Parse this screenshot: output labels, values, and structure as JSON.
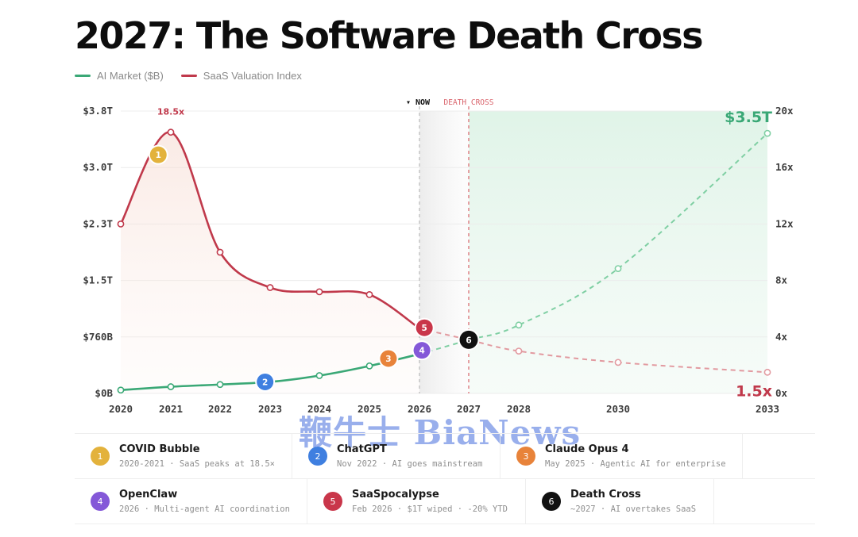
{
  "title": "2027: The Software Death Cross",
  "legend": [
    {
      "label": "AI Market ($B)",
      "color": "#3aa876"
    },
    {
      "label": "SaaS Valuation Index",
      "color": "#c0394b"
    }
  ],
  "colors": {
    "ai": "#3aa876",
    "saas": "#c0394b",
    "death": "#d9636b"
  },
  "chart_data": {
    "type": "line",
    "x_ticks": [
      "2020",
      "2021",
      "2022",
      "2023",
      "2024",
      "2025",
      "2026",
      "2027",
      "2028",
      "2030",
      "2033"
    ],
    "y_left_ticks": [
      "$0B",
      "$760B",
      "$1.5T",
      "$2.3T",
      "$3.0T",
      "$3.8T"
    ],
    "y_right_ticks": [
      "0x",
      "4x",
      "8x",
      "12x",
      "16x",
      "20x"
    ],
    "y_left_unit": "$B",
    "y_left_range": [
      0,
      3800
    ],
    "y_right_range": [
      0,
      20
    ],
    "markers": [
      {
        "x": 2026.0,
        "label": "▾ NOW"
      },
      {
        "x": 2027.0,
        "label": "DEATH CROSS"
      }
    ],
    "series": [
      {
        "name": "AI Market ($B)",
        "axis": "left",
        "actual": [
          [
            2020,
            45
          ],
          [
            2021,
            90
          ],
          [
            2022,
            120
          ],
          [
            2023,
            155
          ],
          [
            2024,
            240
          ],
          [
            2025,
            370
          ],
          [
            2026,
            530
          ]
        ],
        "projected": [
          [
            2026,
            530
          ],
          [
            2027,
            720
          ],
          [
            2028,
            920
          ],
          [
            2030,
            1680
          ],
          [
            2033,
            3500
          ]
        ]
      },
      {
        "name": "SaaS Valuation Index",
        "axis": "right",
        "actual": [
          [
            2020,
            12.0
          ],
          [
            2021,
            18.5
          ],
          [
            2022,
            10.0
          ],
          [
            2023,
            7.5
          ],
          [
            2024,
            7.2
          ],
          [
            2025,
            7.0
          ],
          [
            2026,
            4.6
          ]
        ],
        "projected": [
          [
            2026,
            4.6
          ],
          [
            2027,
            3.8
          ],
          [
            2028,
            3.0
          ],
          [
            2030,
            2.2
          ],
          [
            2033,
            1.5
          ]
        ]
      }
    ],
    "annotations": [
      {
        "text": "18.5x",
        "x": 2021,
        "y": 18.5,
        "axis": "right"
      },
      {
        "text": "$3.5T",
        "x": 2033,
        "y": 3500,
        "axis": "left"
      },
      {
        "text": "1.5x",
        "x": 2033,
        "y": 1.5,
        "axis": "right"
      }
    ],
    "events": [
      {
        "n": "1",
        "x": 2020.75,
        "y": 16.9,
        "axis": "right",
        "color": "#e3b23c"
      },
      {
        "n": "2",
        "x": 2022.9,
        "y": 155,
        "axis": "left",
        "color": "#3f7fe0"
      },
      {
        "n": "3",
        "x": 2025.38,
        "y": 470,
        "axis": "left",
        "color": "#e8833a"
      },
      {
        "n": "4",
        "x": 2026.05,
        "y": 580,
        "axis": "left",
        "color": "#8458d8"
      },
      {
        "n": "5",
        "x": 2026.1,
        "y": 4.65,
        "axis": "right",
        "color": "#c9364a"
      },
      {
        "n": "6",
        "x": 2027.0,
        "y": 3.8,
        "axis": "right",
        "color": "#111111"
      }
    ]
  },
  "watermark": "鞭牛士 BiaNews",
  "events": [
    {
      "n": "1",
      "title": "COVID Bubble",
      "desc": "2020-2021 · SaaS peaks at 18.5×",
      "color": "#e3b23c"
    },
    {
      "n": "2",
      "title": "ChatGPT",
      "desc": "Nov 2022 · AI goes mainstream",
      "color": "#3f7fe0"
    },
    {
      "n": "3",
      "title": "Claude Opus 4",
      "desc": "May 2025 · Agentic AI for enterprise",
      "color": "#e8833a"
    },
    {
      "n": "4",
      "title": "OpenClaw",
      "desc": "2026 · Multi-agent AI coordination",
      "color": "#8458d8"
    },
    {
      "n": "5",
      "title": "SaaSpocalypse",
      "desc": "Feb 2026 · $1T wiped · -20% YTD",
      "color": "#c9364a"
    },
    {
      "n": "6",
      "title": "Death Cross",
      "desc": "~2027 · AI overtakes SaaS",
      "color": "#111111"
    }
  ]
}
